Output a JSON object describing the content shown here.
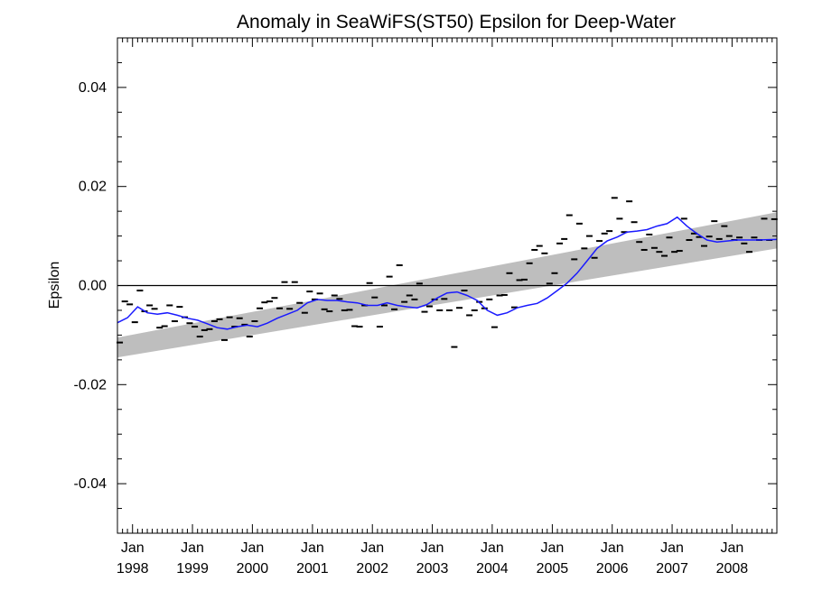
{
  "chart_data": {
    "type": "line",
    "title": "Anomaly in SeaWiFS(ST50) Epsilon for Deep-Water",
    "xlabel": "",
    "ylabel": "Epsilon",
    "xlim": [
      "1997-10-01",
      "2008-09-30"
    ],
    "ylim": [
      -0.05,
      0.05
    ],
    "grid": false,
    "legend": "none",
    "x_ticks": [
      {
        "date": "1998-01-01",
        "month": "Jan",
        "year": "1998"
      },
      {
        "date": "1999-01-01",
        "month": "Jan",
        "year": "1999"
      },
      {
        "date": "2000-01-01",
        "month": "Jan",
        "year": "2000"
      },
      {
        "date": "2001-01-01",
        "month": "Jan",
        "year": "2001"
      },
      {
        "date": "2002-01-01",
        "month": "Jan",
        "year": "2002"
      },
      {
        "date": "2003-01-01",
        "month": "Jan",
        "year": "2003"
      },
      {
        "date": "2004-01-01",
        "month": "Jan",
        "year": "2004"
      },
      {
        "date": "2005-01-01",
        "month": "Jan",
        "year": "2005"
      },
      {
        "date": "2006-01-01",
        "month": "Jan",
        "year": "2006"
      },
      {
        "date": "2007-01-01",
        "month": "Jan",
        "year": "2007"
      },
      {
        "date": "2008-01-01",
        "month": "Jan",
        "year": "2008"
      }
    ],
    "y_ticks": [
      {
        "value": 0.04,
        "label": "0.04"
      },
      {
        "value": 0.02,
        "label": "0.02"
      },
      {
        "value": 0.0,
        "label": "0.00"
      },
      {
        "value": -0.02,
        "label": "-0.02"
      },
      {
        "value": -0.04,
        "label": "-0.04"
      }
    ],
    "zero_line": 0.0,
    "trend_band": {
      "x": [
        "1997-10-01",
        "2008-09-30"
      ],
      "lower": [
        -0.0145,
        0.0075
      ],
      "upper": [
        -0.0105,
        0.0148
      ]
    },
    "series": [
      {
        "kind": "observations",
        "marker": "dash",
        "x": [
          "1997-10-15",
          "1997-11-15",
          "1997-12-15",
          "1998-01-15",
          "1998-02-15",
          "1998-03-15",
          "1998-04-15",
          "1998-05-15",
          "1998-06-15",
          "1998-07-15",
          "1998-08-15",
          "1998-09-15",
          "1998-10-15",
          "1998-11-15",
          "1998-12-15",
          "1999-01-15",
          "1999-02-15",
          "1999-03-15",
          "1999-04-15",
          "1999-05-15",
          "1999-06-15",
          "1999-07-15",
          "1999-08-15",
          "1999-09-15",
          "1999-10-15",
          "1999-11-15",
          "1999-12-15",
          "2000-01-15",
          "2000-02-15",
          "2000-03-15",
          "2000-04-15",
          "2000-05-15",
          "2000-06-15",
          "2000-07-15",
          "2000-08-15",
          "2000-09-15",
          "2000-10-15",
          "2000-11-15",
          "2000-12-15",
          "2001-01-15",
          "2001-02-15",
          "2001-03-15",
          "2001-04-15",
          "2001-05-15",
          "2001-06-15",
          "2001-07-15",
          "2001-08-15",
          "2001-09-15",
          "2001-10-15",
          "2001-11-15",
          "2001-12-15",
          "2002-01-15",
          "2002-02-15",
          "2002-03-15",
          "2002-04-15",
          "2002-05-15",
          "2002-06-15",
          "2002-07-15",
          "2002-08-15",
          "2002-09-15",
          "2002-10-15",
          "2002-11-15",
          "2002-12-15",
          "2003-01-15",
          "2003-02-15",
          "2003-03-15",
          "2003-04-15",
          "2003-05-15",
          "2003-06-15",
          "2003-07-15",
          "2003-08-15",
          "2003-09-15",
          "2003-10-15",
          "2003-11-15",
          "2003-12-15",
          "2004-01-15",
          "2004-02-15",
          "2004-03-15",
          "2004-04-15",
          "2004-05-15",
          "2004-06-15",
          "2004-07-15",
          "2004-08-15",
          "2004-09-15",
          "2004-10-15",
          "2004-11-15",
          "2004-12-15",
          "2005-01-15",
          "2005-02-15",
          "2005-03-15",
          "2005-04-15",
          "2005-05-15",
          "2005-06-15",
          "2005-07-15",
          "2005-08-15",
          "2005-09-15",
          "2005-10-15",
          "2005-11-15",
          "2005-12-15",
          "2006-01-15",
          "2006-02-15",
          "2006-03-15",
          "2006-04-15",
          "2006-05-15",
          "2006-06-15",
          "2006-07-15",
          "2006-08-15",
          "2006-09-15",
          "2006-10-15",
          "2006-11-15",
          "2006-12-15",
          "2007-01-15",
          "2007-02-15",
          "2007-03-15",
          "2007-04-15",
          "2007-05-15",
          "2007-06-15",
          "2007-07-15",
          "2007-08-15",
          "2007-09-15",
          "2007-10-15",
          "2007-11-15",
          "2007-12-15",
          "2008-01-15",
          "2008-02-15",
          "2008-03-15",
          "2008-04-15",
          "2008-05-15",
          "2008-06-15",
          "2008-07-15",
          "2008-08-15",
          "2008-09-15"
        ],
        "y": [
          -0.0115,
          -0.0032,
          -0.0038,
          -0.0074,
          -0.001,
          -0.0052,
          -0.004,
          -0.0047,
          -0.0085,
          -0.0082,
          -0.004,
          -0.0072,
          -0.0043,
          -0.0064,
          -0.0076,
          -0.0083,
          -0.0103,
          -0.009,
          -0.0088,
          -0.0072,
          -0.0068,
          -0.011,
          -0.0064,
          -0.0083,
          -0.0066,
          -0.0079,
          -0.0103,
          -0.0072,
          -0.0046,
          -0.0034,
          -0.0032,
          -0.0025,
          -0.0046,
          0.0007,
          -0.0047,
          0.0007,
          -0.0035,
          -0.0055,
          -0.0012,
          -0.0028,
          -0.0016,
          -0.0048,
          -0.0052,
          -0.002,
          -0.0027,
          -0.005,
          -0.0049,
          -0.0082,
          -0.0083,
          -0.004,
          0.0005,
          -0.0024,
          -0.0083,
          -0.004,
          0.0018,
          -0.0048,
          0.0041,
          -0.0033,
          -0.002,
          -0.0028,
          0.0004,
          -0.0053,
          -0.0042,
          -0.0028,
          -0.005,
          -0.0027,
          -0.005,
          -0.0124,
          -0.0045,
          -0.001,
          -0.006,
          -0.005,
          -0.0033,
          -0.0046,
          -0.0028,
          -0.0084,
          -0.002,
          -0.0019,
          0.0025,
          -0.0044,
          0.0011,
          0.0012,
          0.0045,
          0.0072,
          0.008,
          0.0065,
          0.0004,
          0.0025,
          0.0085,
          0.0094,
          0.0142,
          0.0053,
          0.0125,
          0.0075,
          0.01,
          0.0056,
          0.009,
          0.0105,
          0.011,
          0.0177,
          0.0135,
          0.0108,
          0.017,
          0.0128,
          0.0088,
          0.0072,
          0.0103,
          0.0076,
          0.0068,
          0.006,
          0.0097,
          0.0068,
          0.007,
          0.0135,
          0.0092,
          0.0105,
          0.0098,
          0.008,
          0.0099,
          0.013,
          0.0094,
          0.012,
          0.01,
          0.0092,
          0.0097,
          0.0085,
          0.0068,
          0.0097,
          0.0092,
          0.0135,
          0.0092,
          0.0134
        ]
      },
      {
        "kind": "running-mean",
        "color": "#1a1aff",
        "x": [
          "1997-10-01",
          "1997-12-01",
          "1998-02-01",
          "1998-04-01",
          "1998-06-01",
          "1998-08-01",
          "1998-10-01",
          "1998-12-01",
          "1999-02-01",
          "1999-04-01",
          "1999-06-01",
          "1999-08-01",
          "1999-10-01",
          "1999-12-01",
          "2000-02-01",
          "2000-04-01",
          "2000-06-01",
          "2000-08-01",
          "2000-10-01",
          "2000-12-01",
          "2001-02-01",
          "2001-04-01",
          "2001-06-01",
          "2001-08-01",
          "2001-10-01",
          "2001-12-01",
          "2002-02-01",
          "2002-04-01",
          "2002-06-01",
          "2002-08-01",
          "2002-10-01",
          "2002-12-01",
          "2003-02-01",
          "2003-04-01",
          "2003-06-01",
          "2003-08-01",
          "2003-10-01",
          "2003-12-01",
          "2004-02-01",
          "2004-04-01",
          "2004-06-01",
          "2004-08-01",
          "2004-10-01",
          "2004-12-01",
          "2005-02-01",
          "2005-04-01",
          "2005-06-01",
          "2005-08-01",
          "2005-10-01",
          "2005-12-01",
          "2006-02-01",
          "2006-04-01",
          "2006-06-01",
          "2006-08-01",
          "2006-10-01",
          "2006-12-01",
          "2007-02-01",
          "2007-04-01",
          "2007-06-01",
          "2007-08-01",
          "2007-10-01",
          "2007-12-01",
          "2008-02-01",
          "2008-04-01",
          "2008-06-01",
          "2008-09-30"
        ],
        "y": [
          -0.0075,
          -0.0065,
          -0.0043,
          -0.0055,
          -0.0058,
          -0.0055,
          -0.006,
          -0.0066,
          -0.007,
          -0.0077,
          -0.0085,
          -0.0088,
          -0.0083,
          -0.008,
          -0.0083,
          -0.0076,
          -0.0066,
          -0.0058,
          -0.005,
          -0.0035,
          -0.0028,
          -0.003,
          -0.003,
          -0.0033,
          -0.0035,
          -0.004,
          -0.004,
          -0.0035,
          -0.004,
          -0.0043,
          -0.0045,
          -0.0038,
          -0.0025,
          -0.0015,
          -0.0013,
          -0.002,
          -0.003,
          -0.005,
          -0.006,
          -0.0055,
          -0.0045,
          -0.004,
          -0.0036,
          -0.0025,
          -0.001,
          0.0005,
          0.0025,
          0.005,
          0.0075,
          0.009,
          0.0098,
          0.0108,
          0.011,
          0.0113,
          0.012,
          0.0125,
          0.0138,
          0.012,
          0.0105,
          0.0092,
          0.0088,
          0.009,
          0.0092,
          0.0092,
          0.0092,
          0.0093
        ]
      }
    ]
  }
}
